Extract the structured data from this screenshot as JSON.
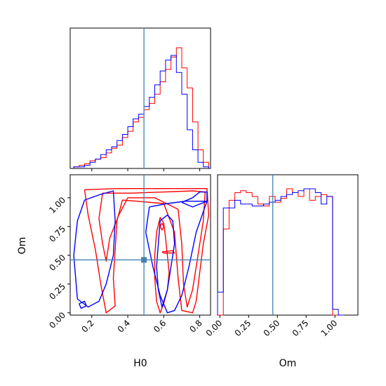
{
  "chart_data": {
    "type": "corner",
    "parameters": [
      "H0",
      "Om"
    ],
    "truth": {
      "H0": 0.49,
      "Om": 0.46
    },
    "truth_color": "#4682b4",
    "series_colors": {
      "red": "#ff0000",
      "blue": "#0000ff"
    },
    "h0_ticks": [
      {
        "v": 0.2,
        "label": "0.2"
      },
      {
        "v": 0.4,
        "label": "0.4"
      },
      {
        "v": 0.6,
        "label": "0.6"
      },
      {
        "v": 0.8,
        "label": "0.8"
      }
    ],
    "om_ticks": [
      {
        "v": 0.0,
        "label": "0.00"
      },
      {
        "v": 0.25,
        "label": "0.25"
      },
      {
        "v": 0.5,
        "label": "0.50"
      },
      {
        "v": 0.75,
        "label": "0.75"
      },
      {
        "v": 1.0,
        "label": "1.00"
      }
    ],
    "h0_range": [
      0.08,
      0.86
    ],
    "om_range": [
      -0.02,
      1.2
    ],
    "hist_h0": {
      "bins": [
        0.1,
        0.13,
        0.16,
        0.19,
        0.22,
        0.25,
        0.28,
        0.31,
        0.34,
        0.37,
        0.4,
        0.43,
        0.46,
        0.49,
        0.52,
        0.55,
        0.58,
        0.61,
        0.64,
        0.67,
        0.7,
        0.73,
        0.76,
        0.79,
        0.82,
        0.85
      ],
      "red": [
        1,
        2,
        3,
        5,
        6,
        7,
        10,
        13,
        15,
        20,
        24,
        30,
        33,
        38,
        42,
        48,
        56,
        64,
        72,
        78,
        65,
        52,
        30,
        12,
        4
      ],
      "blue": [
        1,
        1,
        2,
        4,
        6,
        9,
        12,
        14,
        18,
        22,
        27,
        32,
        35,
        40,
        46,
        54,
        63,
        70,
        73,
        62,
        48,
        25,
        12,
        4,
        1
      ]
    },
    "hist_om": {
      "bins": [
        -0.02,
        0.03,
        0.08,
        0.13,
        0.18,
        0.23,
        0.28,
        0.33,
        0.38,
        0.43,
        0.48,
        0.53,
        0.58,
        0.63,
        0.68,
        0.73,
        0.78,
        0.83,
        0.88,
        0.93,
        0.98,
        1.03,
        1.08
      ],
      "red": [
        0,
        45,
        60,
        64,
        65,
        64,
        62,
        58,
        57,
        62,
        59,
        61,
        66,
        64,
        62,
        66,
        60,
        62,
        63,
        62,
        0,
        0
      ],
      "blue": [
        12,
        56,
        56,
        60,
        58,
        58,
        57,
        57,
        58,
        59,
        60,
        62,
        63,
        64,
        65,
        66,
        66,
        64,
        58,
        62,
        3,
        0
      ]
    },
    "contours": {
      "red": [
        [
          [
            0.16,
            1.07
          ],
          [
            0.35,
            1.08
          ],
          [
            0.55,
            1.08
          ],
          [
            0.72,
            1.08
          ],
          [
            0.84,
            1.08
          ],
          [
            0.85,
            0.85
          ],
          [
            0.82,
            0.6
          ],
          [
            0.8,
            0.35
          ],
          [
            0.78,
            0.1
          ],
          [
            0.76,
            0.0
          ],
          [
            0.7,
            0.02
          ],
          [
            0.68,
            0.3
          ],
          [
            0.66,
            0.7
          ],
          [
            0.6,
            0.95
          ],
          [
            0.45,
            0.97
          ],
          [
            0.37,
            0.98
          ],
          [
            0.34,
            0.8
          ],
          [
            0.33,
            0.55
          ],
          [
            0.32,
            0.3
          ],
          [
            0.33,
            0.06
          ],
          [
            0.28,
            0.0
          ],
          [
            0.25,
            0.25
          ],
          [
            0.22,
            0.55
          ],
          [
            0.18,
            0.85
          ],
          [
            0.16,
            1.07
          ]
        ],
        [
          [
            0.26,
            1.04
          ],
          [
            0.42,
            1.04
          ],
          [
            0.6,
            1.05
          ],
          [
            0.76,
            1.06
          ],
          [
            0.83,
            1.05
          ],
          [
            0.82,
            0.8
          ],
          [
            0.79,
            0.5
          ],
          [
            0.76,
            0.2
          ],
          [
            0.73,
            0.05
          ],
          [
            0.71,
            0.25
          ],
          [
            0.7,
            0.6
          ],
          [
            0.68,
            0.9
          ],
          [
            0.55,
            1.0
          ],
          [
            0.4,
            1.0
          ],
          [
            0.35,
            0.85
          ],
          [
            0.3,
            0.65
          ],
          [
            0.28,
            0.45
          ],
          [
            0.26,
            0.6
          ],
          [
            0.24,
            0.82
          ],
          [
            0.26,
            1.04
          ]
        ],
        [
          [
            0.58,
            0.83
          ],
          [
            0.6,
            0.78
          ],
          [
            0.61,
            0.65
          ],
          [
            0.62,
            0.5
          ],
          [
            0.63,
            0.35
          ],
          [
            0.62,
            0.2
          ],
          [
            0.6,
            0.08
          ],
          [
            0.58,
            0.0
          ],
          [
            0.56,
            0.1
          ],
          [
            0.55,
            0.3
          ],
          [
            0.55,
            0.5
          ],
          [
            0.56,
            0.7
          ],
          [
            0.58,
            0.83
          ]
        ],
        [
          [
            0.59,
            0.53
          ],
          [
            0.65,
            0.54
          ],
          [
            0.66,
            0.52
          ],
          [
            0.6,
            0.52
          ],
          [
            0.59,
            0.53
          ]
        ],
        [
          [
            0.59,
            0.78
          ],
          [
            0.6,
            0.75
          ],
          [
            0.59,
            0.72
          ],
          [
            0.58,
            0.75
          ],
          [
            0.59,
            0.78
          ]
        ]
      ],
      "blue": [
        [
          [
            0.16,
            0.98
          ],
          [
            0.25,
            1.03
          ],
          [
            0.32,
            1.06
          ],
          [
            0.33,
            0.8
          ],
          [
            0.32,
            0.5
          ],
          [
            0.28,
            0.25
          ],
          [
            0.24,
            0.1
          ],
          [
            0.18,
            0.05
          ],
          [
            0.12,
            0.12
          ],
          [
            0.1,
            0.5
          ],
          [
            0.12,
            0.8
          ],
          [
            0.16,
            0.98
          ]
        ],
        [
          [
            0.52,
            0.92
          ],
          [
            0.62,
            0.95
          ],
          [
            0.72,
            0.97
          ],
          [
            0.84,
            0.97
          ],
          [
            0.78,
            0.7
          ],
          [
            0.74,
            0.4
          ],
          [
            0.7,
            0.15
          ],
          [
            0.66,
            0.02
          ],
          [
            0.62,
            0.0
          ],
          [
            0.58,
            0.15
          ],
          [
            0.54,
            0.4
          ],
          [
            0.5,
            0.7
          ],
          [
            0.52,
            0.92
          ]
        ],
        [
          [
            0.58,
            0.8
          ],
          [
            0.62,
            0.85
          ],
          [
            0.65,
            0.8
          ],
          [
            0.66,
            0.6
          ],
          [
            0.64,
            0.4
          ],
          [
            0.62,
            0.2
          ],
          [
            0.59,
            0.05
          ],
          [
            0.57,
            0.2
          ],
          [
            0.56,
            0.4
          ],
          [
            0.57,
            0.6
          ],
          [
            0.58,
            0.8
          ]
        ],
        [
          [
            0.13,
            0.08
          ],
          [
            0.16,
            0.1
          ],
          [
            0.17,
            0.06
          ],
          [
            0.14,
            0.04
          ],
          [
            0.13,
            0.08
          ]
        ],
        [
          [
            0.7,
            0.96
          ],
          [
            0.76,
            1.0
          ],
          [
            0.8,
            1.05
          ],
          [
            0.84,
            1.05
          ],
          [
            0.84,
            0.97
          ],
          [
            0.76,
            0.92
          ],
          [
            0.7,
            0.96
          ]
        ]
      ]
    }
  },
  "labels": {
    "x_h0": "H0",
    "x_om": "Om",
    "y_om": "Om"
  }
}
